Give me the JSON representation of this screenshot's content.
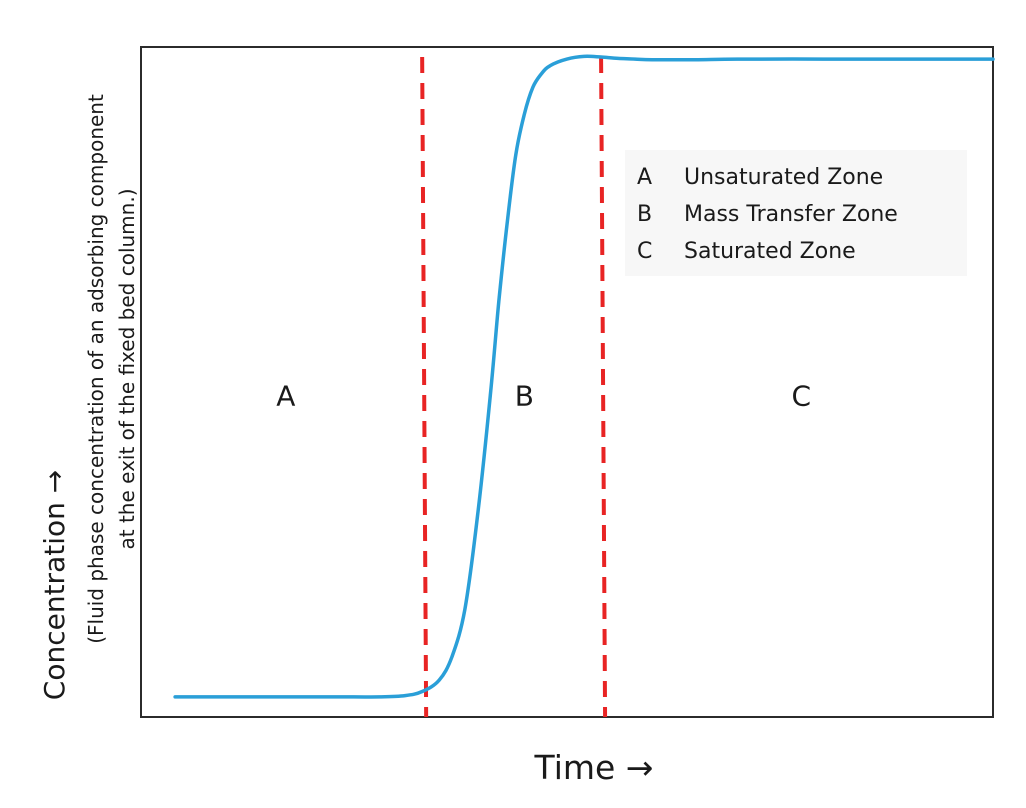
{
  "chart_data": {
    "type": "line",
    "title": "",
    "xlabel": "Time →",
    "ylabel": "Concentration →",
    "ylabel_note_lines": [
      "(Fluid phase concentration of an adsorbing component",
      "at the exit of the fixed bed column.)"
    ],
    "xlim": [
      0,
      100
    ],
    "ylim": [
      0,
      100
    ],
    "grid": false,
    "series": [
      {
        "color": "#2a9fd8",
        "x": [
          4,
          10,
          20,
          25,
          28,
          31,
          33,
          35,
          36.5,
          38,
          39.5,
          41,
          42,
          43,
          44,
          45,
          46,
          47,
          48,
          50,
          52,
          54,
          56,
          58,
          60,
          65,
          70,
          80,
          90,
          100
        ],
        "y": [
          3,
          3,
          3,
          3,
          3,
          3.2,
          3.8,
          5.5,
          9,
          16,
          30,
          48,
          62,
          74,
          84,
          90,
          94,
          96,
          97.2,
          98.2,
          98.6,
          98.5,
          98.3,
          98.2,
          98.1,
          98.1,
          98.2,
          98.2,
          98.2,
          98.2
        ]
      }
    ],
    "boundaries": {
      "color": "#e82424",
      "x": [
        33,
        54
      ]
    },
    "zones": [
      {
        "label": "A",
        "x": 17,
        "y": 48
      },
      {
        "label": "B",
        "x": 45,
        "y": 48
      },
      {
        "label": "C",
        "x": 77.5,
        "y": 48
      }
    ],
    "legend": {
      "placement": "top-right",
      "entries": [
        {
          "key": "A",
          "text": "Unsaturated Zone"
        },
        {
          "key": "B",
          "text": "Mass Transfer Zone"
        },
        {
          "key": "C",
          "text": "Saturated Zone"
        }
      ]
    }
  }
}
